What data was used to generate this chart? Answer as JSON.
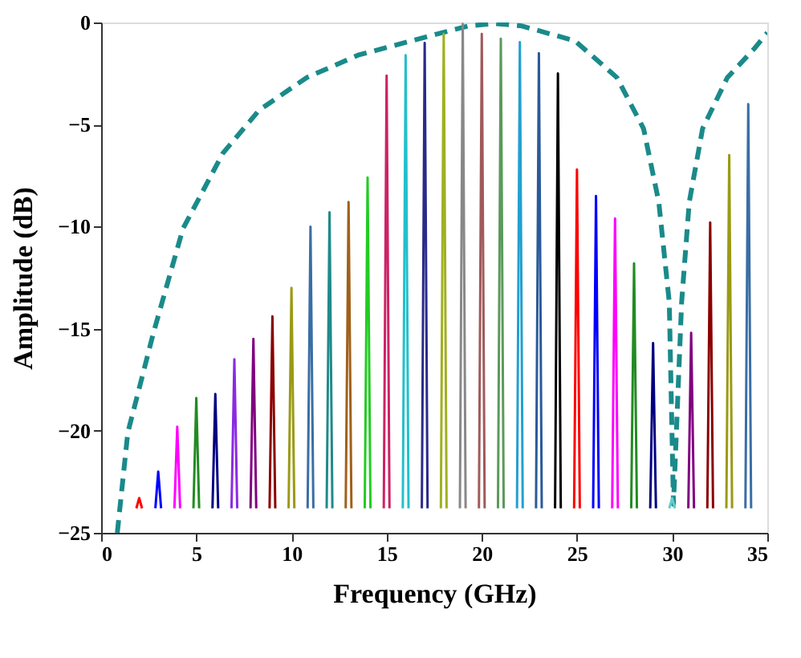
{
  "chart_data": {
    "type": "line",
    "xlabel": "Frequency (GHz)",
    "ylabel": "Amplitude (dB)",
    "xlim": [
      0,
      35
    ],
    "xticks": [
      0,
      5,
      10,
      15,
      20,
      25,
      30,
      35
    ],
    "ylim": [
      -25,
      0
    ],
    "yticks": [
      0,
      -5,
      -10,
      -15,
      -20,
      -25
    ],
    "grid": false,
    "marker": "none",
    "line_style": "solid",
    "series": [
      {
        "color": "#1a8a8a",
        "line_style": "dashed",
        "x": [
          0.85,
          1.4,
          2.75,
          4.3,
          6.4,
          8.3,
          10.8,
          13.5,
          17.1,
          19.3,
          20.7,
          22.1,
          24.9,
          27.1,
          28.5,
          29.3,
          29.85,
          30.07,
          30.5,
          30.9,
          31.6,
          32.9,
          34.3,
          35
        ],
        "values": [
          -25,
          -20.1,
          -15.2,
          -10.1,
          -6.4,
          -4.3,
          -2.7,
          -1.6,
          -0.7,
          -0.17,
          -0.05,
          -0.17,
          -0.9,
          -2.7,
          -5.2,
          -8.8,
          -13.7,
          -23.6,
          -13.7,
          -8.8,
          -5.2,
          -2.7,
          -1.3,
          -0.5
        ]
      },
      {
        "color": "#ff0000",
        "x": [
          1.85,
          2,
          2.15
        ],
        "values": [
          -23.8,
          -23.3,
          -23.8
        ]
      },
      {
        "color": "#0000ff",
        "x": [
          2.85,
          3,
          3.15
        ],
        "values": [
          -23.8,
          -22.0,
          -23.8
        ]
      },
      {
        "color": "#ff00ff",
        "x": [
          3.85,
          4,
          4.15
        ],
        "values": [
          -23.8,
          -19.8,
          -23.8
        ]
      },
      {
        "color": "#228b22",
        "x": [
          4.85,
          5,
          5.15
        ],
        "values": [
          -23.8,
          -18.4,
          -23.8
        ]
      },
      {
        "color": "#000080",
        "x": [
          5.85,
          6,
          6.15
        ],
        "values": [
          -23.8,
          -18.2,
          -23.8
        ]
      },
      {
        "color": "#8a2be2",
        "x": [
          6.85,
          7,
          7.15
        ],
        "values": [
          -23.8,
          -16.5,
          -23.8
        ]
      },
      {
        "color": "#800080",
        "x": [
          7.85,
          8,
          8.15
        ],
        "values": [
          -23.8,
          -15.5,
          -23.8
        ]
      },
      {
        "color": "#8b0000",
        "x": [
          8.85,
          9,
          9.15
        ],
        "values": [
          -23.8,
          -14.4,
          -23.8
        ]
      },
      {
        "color": "#9a9a14",
        "x": [
          9.85,
          10,
          10.15
        ],
        "values": [
          -23.8,
          -13.0,
          -23.8
        ]
      },
      {
        "color": "#3a6ea5",
        "x": [
          10.85,
          11,
          11.15
        ],
        "values": [
          -23.8,
          -10.0,
          -23.8
        ]
      },
      {
        "color": "#1f8a8a",
        "x": [
          11.85,
          12,
          12.15
        ],
        "values": [
          -23.8,
          -9.3,
          -23.8
        ]
      },
      {
        "color": "#a0601a",
        "x": [
          12.85,
          13,
          13.15
        ],
        "values": [
          -23.8,
          -8.8,
          -23.8
        ]
      },
      {
        "color": "#22cc22",
        "x": [
          13.85,
          14,
          14.15
        ],
        "values": [
          -23.8,
          -7.6,
          -23.8
        ]
      },
      {
        "color": "#cc2266",
        "x": [
          14.85,
          15,
          15.15
        ],
        "values": [
          -23.8,
          -2.6,
          -23.8
        ]
      },
      {
        "color": "#22c0cc",
        "x": [
          15.85,
          16,
          16.15
        ],
        "values": [
          -23.8,
          -1.6,
          -23.8
        ]
      },
      {
        "color": "#2a2a8a",
        "x": [
          16.85,
          17,
          17.15
        ],
        "values": [
          -23.8,
          -1.0,
          -23.8
        ]
      },
      {
        "color": "#a0b020",
        "x": [
          17.85,
          18,
          18.15
        ],
        "values": [
          -23.8,
          -0.56,
          -23.8
        ]
      },
      {
        "color": "#888888",
        "x": [
          18.85,
          19,
          19.15
        ],
        "values": [
          -23.8,
          -0.07,
          -23.8
        ]
      },
      {
        "color": "#a05a5a",
        "x": [
          19.85,
          20,
          20.15
        ],
        "values": [
          -23.8,
          -0.56,
          -23.8
        ]
      },
      {
        "color": "#5a9a5a",
        "x": [
          20.85,
          21,
          21.15
        ],
        "values": [
          -23.8,
          -0.8,
          -23.8
        ]
      },
      {
        "color": "#22a0d0",
        "x": [
          21.85,
          22,
          22.15
        ],
        "values": [
          -23.8,
          -0.96,
          -23.8
        ]
      },
      {
        "color": "#2a5a9a",
        "x": [
          22.85,
          23,
          23.15
        ],
        "values": [
          -23.8,
          -1.5,
          -23.8
        ]
      },
      {
        "color": "#000000",
        "x": [
          23.85,
          24,
          24.15
        ],
        "values": [
          -23.8,
          -2.5,
          -23.8
        ]
      },
      {
        "color": "#ff0000",
        "x": [
          24.85,
          25,
          25.15
        ],
        "values": [
          -23.8,
          -7.2,
          -23.8
        ]
      },
      {
        "color": "#0000ff",
        "x": [
          25.85,
          26,
          26.15
        ],
        "values": [
          -23.8,
          -8.5,
          -23.8
        ]
      },
      {
        "color": "#ff00ff",
        "x": [
          26.85,
          27,
          27.15
        ],
        "values": [
          -23.8,
          -9.6,
          -23.8
        ]
      },
      {
        "color": "#228b22",
        "x": [
          27.85,
          28,
          28.15
        ],
        "values": [
          -23.8,
          -11.8,
          -23.8
        ]
      },
      {
        "color": "#000080",
        "x": [
          28.85,
          29,
          29.15
        ],
        "values": [
          -23.8,
          -15.7,
          -23.8
        ]
      },
      {
        "color": "#66cccc",
        "x": [
          29.85,
          30,
          30.15
        ],
        "values": [
          -23.8,
          -23.3,
          -23.8
        ]
      },
      {
        "color": "#800080",
        "x": [
          30.85,
          31,
          31.15
        ],
        "values": [
          -23.8,
          -15.2,
          -23.8
        ]
      },
      {
        "color": "#8b0000",
        "x": [
          31.85,
          32,
          32.15
        ],
        "values": [
          -23.8,
          -9.8,
          -23.8
        ]
      },
      {
        "color": "#9a9a14",
        "x": [
          32.85,
          33,
          33.15
        ],
        "values": [
          -23.8,
          -6.5,
          -23.8
        ]
      },
      {
        "color": "#3a6ea5",
        "x": [
          33.85,
          34,
          34.15
        ],
        "values": [
          -23.8,
          -4.0,
          -23.8
        ]
      }
    ]
  }
}
